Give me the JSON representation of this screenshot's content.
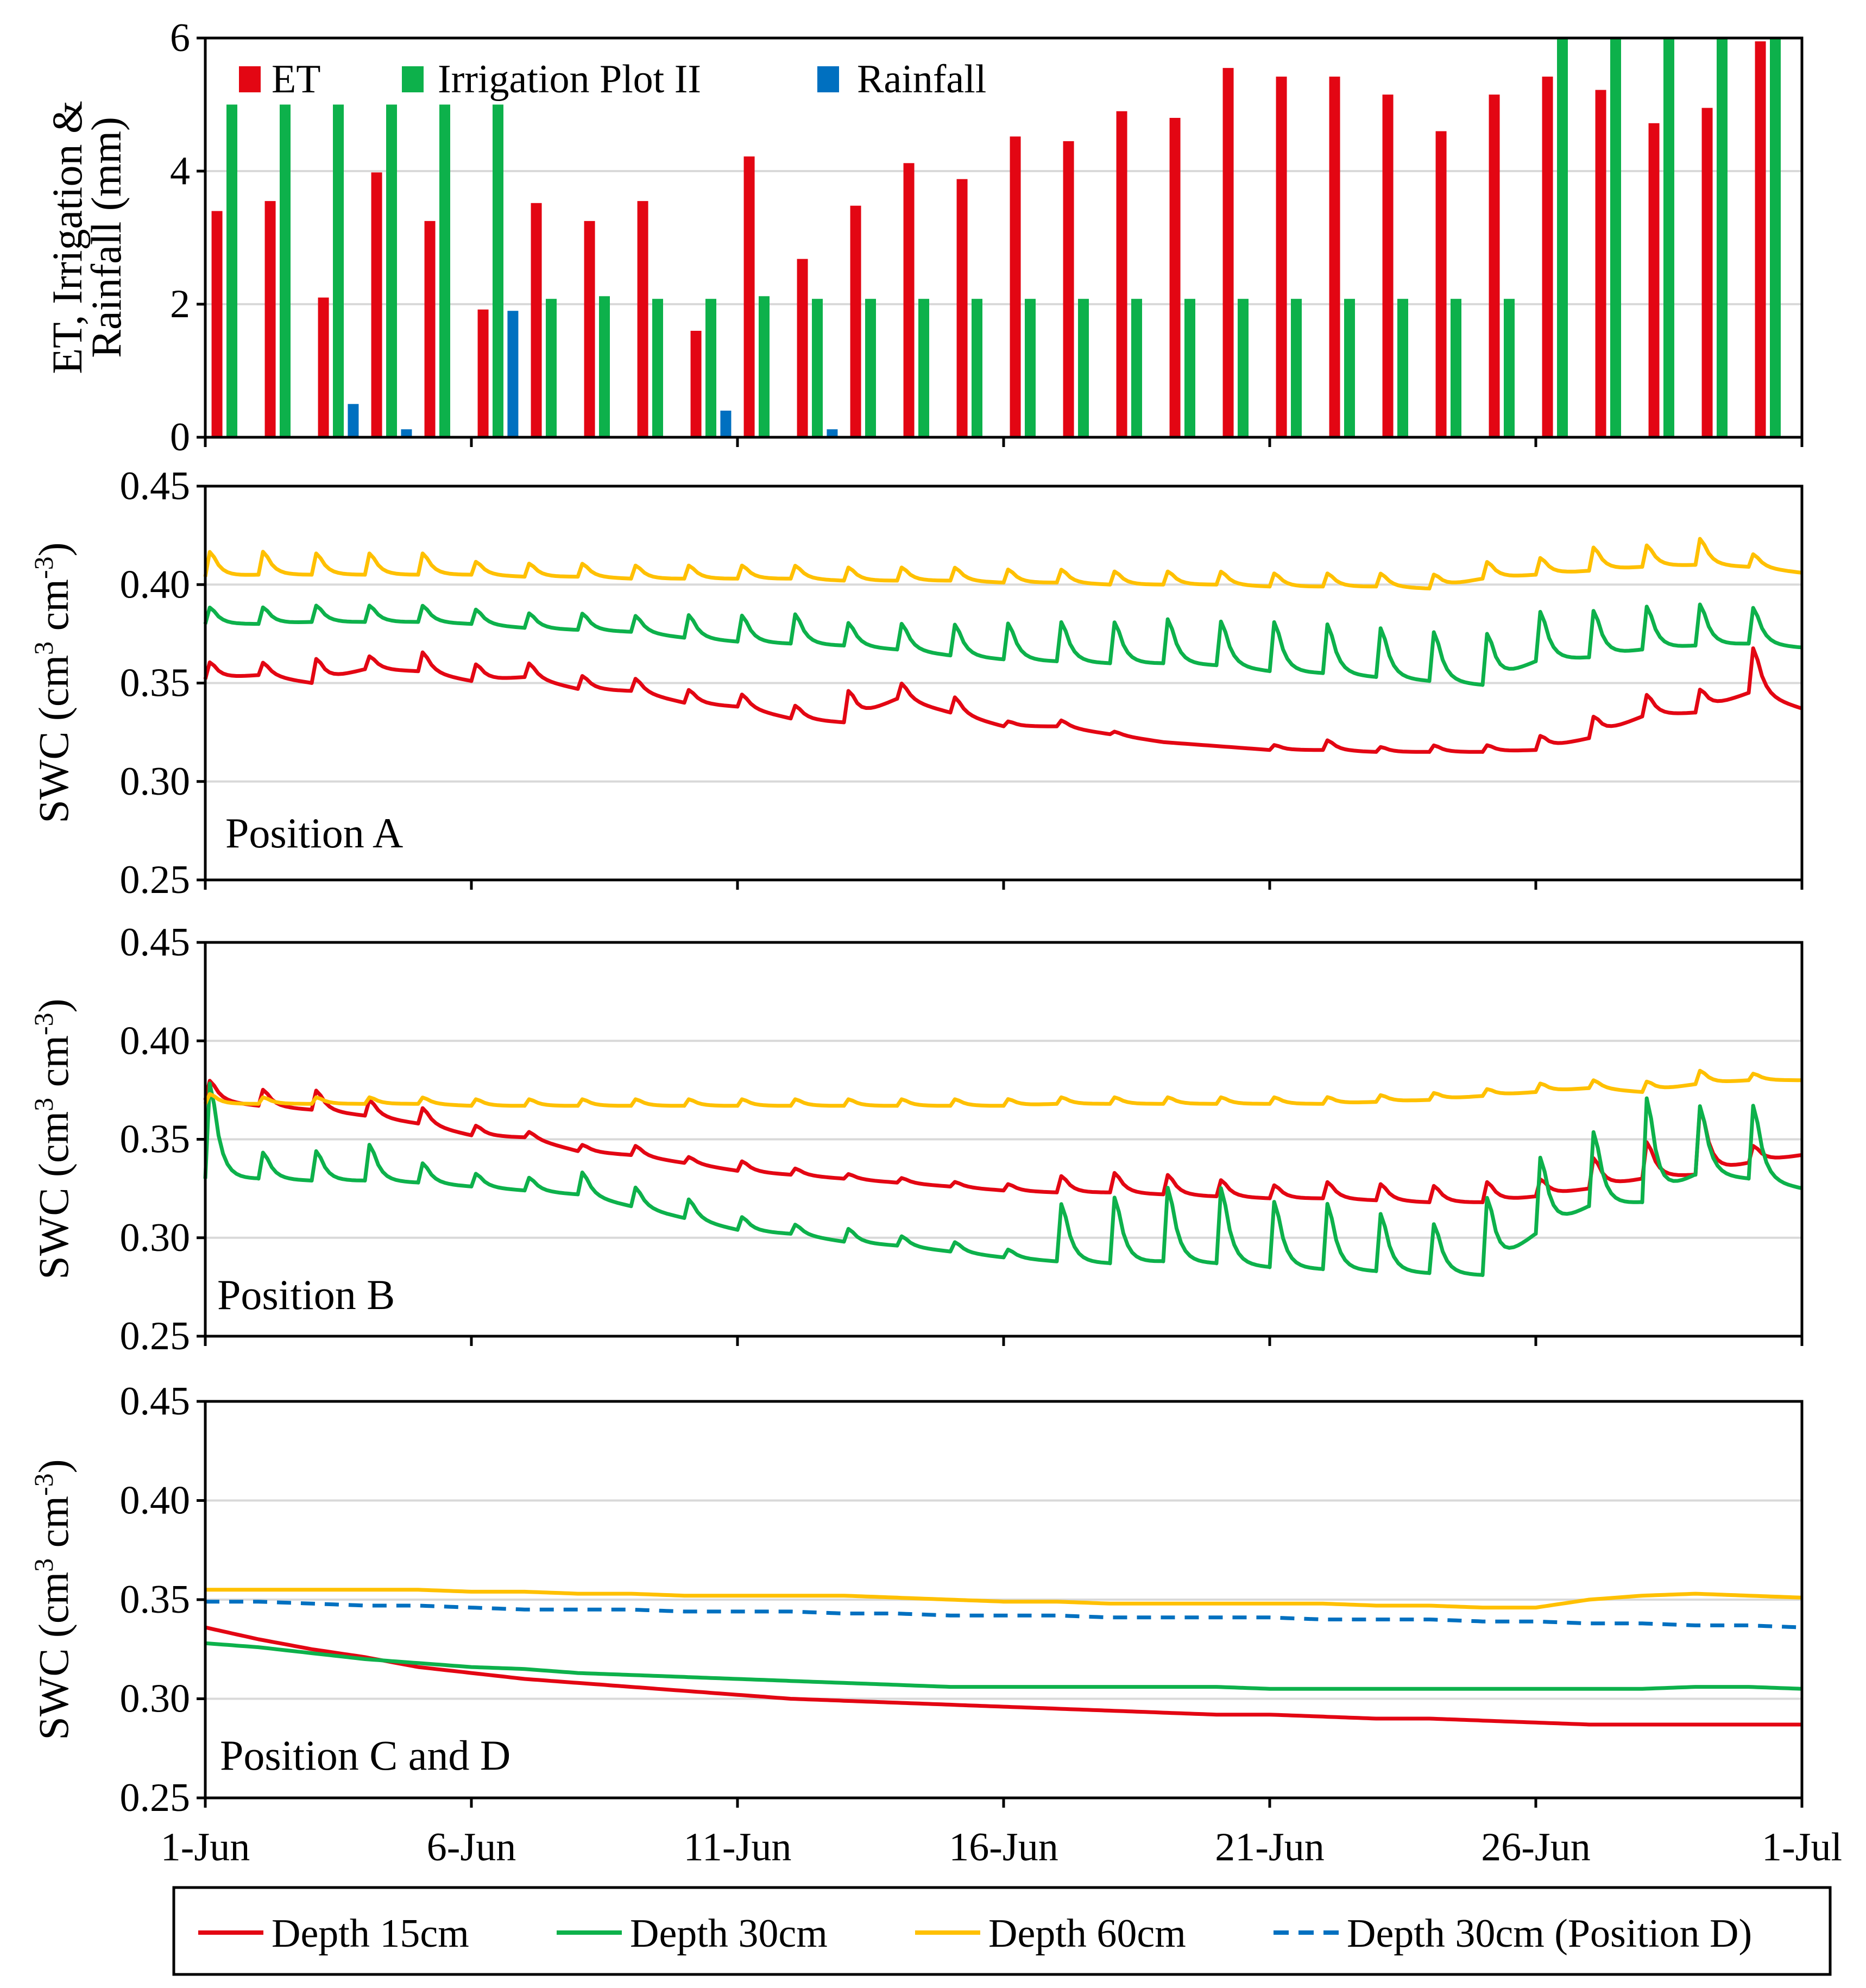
{
  "chart_data": [
    {
      "type": "bar",
      "ylabel_line1": "ET, Irrigation &",
      "ylabel_line2": "Rainfall (mm)",
      "ylim": [
        0,
        6
      ],
      "yticks": [
        "0",
        "2",
        "4",
        "6"
      ],
      "days": [
        1,
        2,
        3,
        4,
        5,
        6,
        7,
        8,
        9,
        10,
        11,
        12,
        13,
        14,
        15,
        16,
        17,
        18,
        19,
        20,
        21,
        22,
        23,
        24,
        25,
        26,
        27,
        28,
        29,
        30
      ],
      "legend": {
        "et": "ET",
        "irr": "Irrigation Plot II",
        "rain": "Rainfall"
      },
      "colors": {
        "et": "#e30613",
        "irr": "#0db14b",
        "rain": "#0070c0"
      },
      "series": [
        {
          "name": "ET",
          "values": [
            3.4,
            3.55,
            2.1,
            3.98,
            3.25,
            1.92,
            3.52,
            3.25,
            3.55,
            1.6,
            4.22,
            2.68,
            3.48,
            4.12,
            3.88,
            4.52,
            4.45,
            4.9,
            4.8,
            5.55,
            5.42,
            5.42,
            5.15,
            4.6,
            5.15,
            5.42,
            5.22,
            4.72,
            4.95,
            5.95
          ]
        },
        {
          "name": "Irrigation Plot II",
          "values": [
            5,
            5,
            5,
            5,
            5,
            5,
            2.08,
            2.12,
            2.08,
            2.08,
            2.12,
            2.08,
            2.08,
            2.08,
            2.08,
            2.08,
            2.08,
            2.08,
            2.08,
            2.08,
            2.08,
            2.08,
            2.08,
            2.08,
            2.08,
            6,
            6,
            6,
            6,
            6
          ]
        },
        {
          "name": "Rainfall",
          "values": [
            0,
            0,
            0.5,
            0.12,
            0,
            1.9,
            0,
            0,
            0,
            0.4,
            0,
            0.12,
            0,
            0,
            0,
            0,
            0,
            0,
            0,
            0,
            0,
            0,
            0,
            0,
            0,
            0,
            0,
            0,
            0,
            0
          ]
        }
      ]
    },
    {
      "type": "line",
      "panel_label": "Position A",
      "ylabel": "SWC (cm",
      "ylabel_sup1": "3",
      "ylabel_mid": " cm",
      "ylabel_sup2": "-3",
      "ylabel_end": ")",
      "ylim": [
        0.25,
        0.45
      ],
      "yticks": [
        "0.25",
        "0.30",
        "0.35",
        "0.40",
        "0.45"
      ],
      "series": [
        {
          "name": "Depth 15cm",
          "color": "#e30613",
          "base": [
            0.352,
            0.354,
            0.35,
            0.357,
            0.356,
            0.351,
            0.353,
            0.347,
            0.346,
            0.34,
            0.338,
            0.332,
            0.33,
            0.342,
            0.335,
            0.328,
            0.328,
            0.324,
            0.32,
            0.318,
            0.316,
            0.316,
            0.315,
            0.315,
            0.315,
            0.316,
            0.322,
            0.333,
            0.335,
            0.345,
            0.337
          ],
          "spike": [
            0.01,
            0.008,
            0.014,
            0.008,
            0.012,
            0.01,
            0.009,
            0.008,
            0.008,
            0.008,
            0.008,
            0.008,
            0.018,
            0.01,
            0.01,
            0.003,
            0.004,
            0.002,
            0.0,
            0.0,
            0.003,
            0.006,
            0.003,
            0.004,
            0.004,
            0.008,
            0.012,
            0.013,
            0.013,
            0.028,
            0
          ]
        },
        {
          "name": "Depth 30cm",
          "color": "#0db14b",
          "base": [
            0.38,
            0.38,
            0.381,
            0.381,
            0.381,
            0.38,
            0.378,
            0.377,
            0.376,
            0.373,
            0.371,
            0.37,
            0.369,
            0.367,
            0.364,
            0.362,
            0.361,
            0.36,
            0.36,
            0.359,
            0.356,
            0.355,
            0.353,
            0.351,
            0.349,
            0.361,
            0.363,
            0.367,
            0.369,
            0.37,
            0.368
          ],
          "spike": [
            0.01,
            0.01,
            0.01,
            0.01,
            0.01,
            0.009,
            0.009,
            0.01,
            0.01,
            0.014,
            0.016,
            0.018,
            0.014,
            0.016,
            0.019,
            0.022,
            0.024,
            0.025,
            0.027,
            0.027,
            0.03,
            0.03,
            0.03,
            0.03,
            0.03,
            0.03,
            0.028,
            0.026,
            0.025,
            0.022,
            0
          ]
        },
        {
          "name": "Depth 60cm",
          "color": "#ffc000",
          "base": [
            0.404,
            0.405,
            0.405,
            0.405,
            0.405,
            0.405,
            0.404,
            0.404,
            0.403,
            0.403,
            0.403,
            0.403,
            0.402,
            0.402,
            0.402,
            0.401,
            0.401,
            0.4,
            0.4,
            0.4,
            0.399,
            0.399,
            0.399,
            0.398,
            0.403,
            0.405,
            0.407,
            0.409,
            0.41,
            0.409,
            0.406
          ],
          "spike": [
            0.015,
            0.014,
            0.013,
            0.013,
            0.013,
            0.008,
            0.008,
            0.008,
            0.008,
            0.008,
            0.008,
            0.008,
            0.008,
            0.008,
            0.008,
            0.008,
            0.008,
            0.008,
            0.008,
            0.008,
            0.008,
            0.008,
            0.008,
            0.008,
            0.01,
            0.01,
            0.014,
            0.013,
            0.016,
            0.008,
            0
          ]
        }
      ]
    },
    {
      "type": "line",
      "panel_label": "Position B",
      "ylabel": "SWC (cm",
      "ylabel_sup1": "3",
      "ylabel_mid": " cm",
      "ylabel_sup2": "-3",
      "ylabel_end": ")",
      "ylim": [
        0.25,
        0.45
      ],
      "yticks": [
        "0.25",
        "0.30",
        "0.35",
        "0.40",
        "0.45"
      ],
      "series": [
        {
          "name": "Depth 15cm",
          "color": "#e30613",
          "base": [
            0.37,
            0.367,
            0.365,
            0.362,
            0.358,
            0.352,
            0.351,
            0.344,
            0.342,
            0.338,
            0.334,
            0.332,
            0.33,
            0.328,
            0.326,
            0.324,
            0.323,
            0.323,
            0.322,
            0.321,
            0.32,
            0.32,
            0.319,
            0.318,
            0.318,
            0.321,
            0.325,
            0.33,
            0.332,
            0.338,
            0.342
          ],
          "spike": [
            0.012,
            0.01,
            0.012,
            0.01,
            0.01,
            0.006,
            0.004,
            0.004,
            0.006,
            0.004,
            0.006,
            0.004,
            0.003,
            0.003,
            0.003,
            0.004,
            0.01,
            0.012,
            0.012,
            0.01,
            0.008,
            0.01,
            0.01,
            0.01,
            0.012,
            0.01,
            0.018,
            0.022,
            0.04,
            0.01,
            0
          ]
        },
        {
          "name": "Depth 30cm",
          "color": "#0db14b",
          "base": [
            0.33,
            0.33,
            0.329,
            0.329,
            0.328,
            0.326,
            0.324,
            0.322,
            0.316,
            0.31,
            0.304,
            0.302,
            0.298,
            0.296,
            0.293,
            0.29,
            0.288,
            0.287,
            0.288,
            0.287,
            0.285,
            0.284,
            0.283,
            0.282,
            0.281,
            0.302,
            0.316,
            0.318,
            0.332,
            0.33,
            0.325
          ],
          "spike": [
            0.058,
            0.016,
            0.018,
            0.022,
            0.012,
            0.008,
            0.008,
            0.014,
            0.012,
            0.012,
            0.008,
            0.006,
            0.008,
            0.006,
            0.006,
            0.005,
            0.035,
            0.04,
            0.045,
            0.046,
            0.04,
            0.04,
            0.035,
            0.03,
            0.045,
            0.045,
            0.045,
            0.062,
            0.042,
            0.045,
            0
          ]
        },
        {
          "name": "Depth 60cm",
          "color": "#ffc000",
          "base": [
            0.368,
            0.368,
            0.368,
            0.368,
            0.368,
            0.367,
            0.367,
            0.367,
            0.367,
            0.367,
            0.367,
            0.367,
            0.367,
            0.367,
            0.367,
            0.367,
            0.368,
            0.368,
            0.368,
            0.368,
            0.368,
            0.368,
            0.369,
            0.37,
            0.372,
            0.374,
            0.376,
            0.374,
            0.378,
            0.38,
            0.38
          ],
          "spike": [
            0.006,
            0.004,
            0.004,
            0.004,
            0.004,
            0.004,
            0.004,
            0.004,
            0.004,
            0.004,
            0.004,
            0.004,
            0.004,
            0.004,
            0.004,
            0.004,
            0.004,
            0.004,
            0.004,
            0.004,
            0.004,
            0.004,
            0.004,
            0.004,
            0.004,
            0.005,
            0.005,
            0.006,
            0.008,
            0.004,
            0
          ]
        }
      ]
    },
    {
      "type": "line",
      "panel_label": "Position C and D",
      "ylabel": "SWC (cm",
      "ylabel_sup1": "3",
      "ylabel_mid": " cm",
      "ylabel_sup2": "-3",
      "ylabel_end": ")",
      "ylim": [
        0.25,
        0.45
      ],
      "yticks": [
        "0.25",
        "0.30",
        "0.35",
        "0.40",
        "0.45"
      ],
      "series": [
        {
          "name": "Depth 15cm",
          "color": "#e30613",
          "base": [
            0.336,
            0.33,
            0.325,
            0.321,
            0.316,
            0.313,
            0.31,
            0.308,
            0.306,
            0.304,
            0.302,
            0.3,
            0.299,
            0.298,
            0.297,
            0.296,
            0.295,
            0.294,
            0.293,
            0.292,
            0.292,
            0.291,
            0.29,
            0.29,
            0.289,
            0.288,
            0.287,
            0.287,
            0.287,
            0.287,
            0.287
          ],
          "spike": [
            0
          ]
        },
        {
          "name": "Depth 30cm",
          "color": "#0db14b",
          "base": [
            0.328,
            0.326,
            0.323,
            0.32,
            0.318,
            0.316,
            0.315,
            0.313,
            0.312,
            0.311,
            0.31,
            0.309,
            0.308,
            0.307,
            0.306,
            0.306,
            0.306,
            0.306,
            0.306,
            0.306,
            0.305,
            0.305,
            0.305,
            0.305,
            0.305,
            0.305,
            0.305,
            0.305,
            0.306,
            0.306,
            0.305
          ],
          "spike": [
            0
          ]
        },
        {
          "name": "Depth 60cm",
          "color": "#ffc000",
          "base": [
            0.355,
            0.355,
            0.355,
            0.355,
            0.355,
            0.354,
            0.354,
            0.353,
            0.353,
            0.352,
            0.352,
            0.352,
            0.352,
            0.351,
            0.35,
            0.349,
            0.349,
            0.348,
            0.348,
            0.348,
            0.348,
            0.348,
            0.347,
            0.347,
            0.346,
            0.346,
            0.35,
            0.352,
            0.353,
            0.352,
            0.351
          ],
          "spike": [
            0
          ]
        },
        {
          "name": "Depth 30cm (Position D)",
          "color": "#0070c0",
          "dashed": true,
          "base": [
            0.349,
            0.349,
            0.348,
            0.347,
            0.347,
            0.346,
            0.345,
            0.345,
            0.345,
            0.344,
            0.344,
            0.344,
            0.343,
            0.343,
            0.342,
            0.342,
            0.342,
            0.341,
            0.341,
            0.341,
            0.341,
            0.34,
            0.34,
            0.34,
            0.339,
            0.339,
            0.338,
            0.338,
            0.337,
            0.337,
            0.336
          ],
          "spike": [
            0
          ]
        }
      ]
    }
  ],
  "x_axis": {
    "ticks": [
      "1-Jun",
      "6-Jun",
      "11-Jun",
      "16-Jun",
      "21-Jun",
      "26-Jun",
      "1-Jul"
    ],
    "tick_days": [
      0,
      5,
      10,
      15,
      20,
      25,
      30
    ]
  },
  "bottom_legend": [
    "Depth 15cm",
    "Depth 30cm",
    "Depth 60cm",
    "Depth 30cm (Position D)"
  ]
}
